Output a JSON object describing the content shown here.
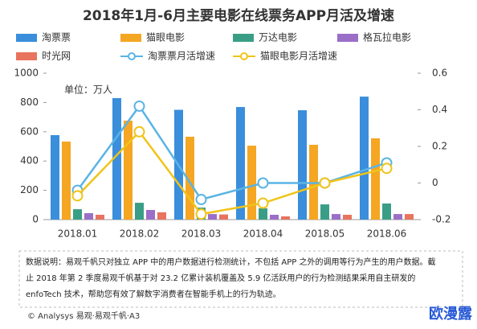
{
  "chart_data": {
    "type": "bar",
    "title": "2018年1月-6月主要电影在线票务APP月活及增速",
    "unit_label": "单位：万人",
    "categories": [
      "2018.01",
      "2018.02",
      "2018.03",
      "2018.04",
      "2018.05",
      "2018.06"
    ],
    "series": [
      {
        "name": "淘票票",
        "color": "#3a8edb",
        "type": "bar",
        "values": [
          577,
          830,
          750,
          769,
          747,
          840
        ]
      },
      {
        "name": "猫眼电影",
        "color": "#f5a623",
        "type": "bar",
        "values": [
          533,
          676,
          566,
          505,
          511,
          555
        ]
      },
      {
        "name": "万达电影",
        "color": "#3a9e86",
        "type": "bar",
        "values": [
          71,
          115,
          82,
          77,
          104,
          110
        ]
      },
      {
        "name": "格瓦拉电影",
        "color": "#9b6fc8",
        "type": "bar",
        "values": [
          44,
          66,
          38,
          33,
          38,
          38
        ]
      },
      {
        "name": "时光网",
        "color": "#e8735f",
        "type": "bar",
        "values": [
          33,
          50,
          35,
          22,
          33,
          38
        ]
      },
      {
        "name": "淘票票月活增速",
        "color": "#5ab4e5",
        "type": "line",
        "axis": "y2",
        "values": [
          -0.04,
          0.42,
          -0.09,
          0.0,
          0.0,
          0.11
        ]
      },
      {
        "name": "猫眼电影月活增速",
        "color": "#f0c419",
        "type": "line",
        "axis": "y2",
        "values": [
          -0.07,
          0.28,
          -0.17,
          -0.11,
          0.0,
          0.08
        ]
      }
    ],
    "ylim": [
      0,
      1000
    ],
    "yticks": [
      0,
      200,
      400,
      600,
      800,
      1000
    ],
    "y2lim": [
      -0.2,
      0.6
    ],
    "y2ticks": [
      -0.2,
      0,
      0.2,
      0.4,
      0.6
    ],
    "grid": false,
    "note": [
      "数据说明：易观千帆只对独立 APP 中的用户数据进行检测统计，不包括 APP 之外的调用等行为产生的用户数据。截",
      "止 2018 年第 2 季度易观千帆基于对 23.2 亿累计装机覆盖及 5.9 亿活跃用户的行为检测结果采用自主研发的",
      "enfoTech 技术，帮助您有效了解数字消费者在智能手机上的行为轨迹。"
    ],
    "source": "© Analysys 易观·易观千帆·A3",
    "brand": "欧漫露"
  }
}
